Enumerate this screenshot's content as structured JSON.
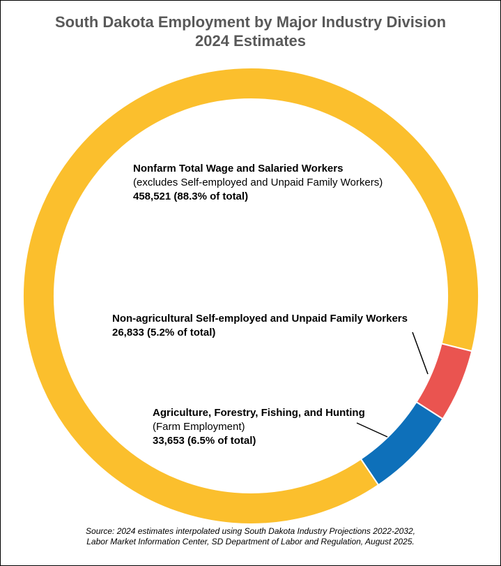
{
  "chart_data": {
    "type": "pie",
    "title": "South Dakota Employment by Major Industry Division",
    "subtitle": "2024 Estimates",
    "slices": [
      {
        "label": "Nonfarm Total Wage and Salaried Workers",
        "note": "(excludes Self-employed and Unpaid Family Workers)",
        "value_text": "458,521 (88.3% of total)",
        "value": 458521,
        "percent": 88.3,
        "color": "#FBBF2D"
      },
      {
        "label": "Non-agricultural Self-employed and Unpaid Family Workers",
        "note": "",
        "value_text": "26,833 (5.2% of total)",
        "value": 26833,
        "percent": 5.2,
        "color": "#EA5450"
      },
      {
        "label": "Agriculture, Forestry, Fishing, and Hunting",
        "note": "(Farm Employment)",
        "value_text": "33,653 (6.5% of total)",
        "value": 33653,
        "percent": 6.5,
        "color": "#0E70BA"
      }
    ],
    "legend": "none"
  },
  "source": {
    "line1": "Source: 2024 estimates interpolated using South Dakota Industry Projections 2022-2032,",
    "line2": "Labor Market Information Center, SD Department of Labor and Regulation, August 2025."
  }
}
